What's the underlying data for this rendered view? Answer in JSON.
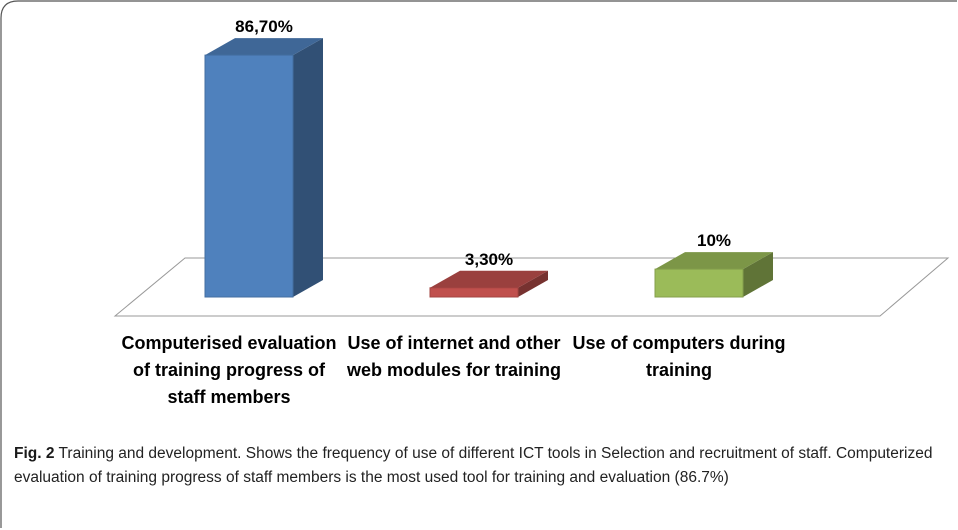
{
  "chart_data": {
    "type": "bar3d",
    "categories": [
      "Computerised evaluation of training progress of staff members",
      "Use of internet and other web modules for training",
      "Use of computers during training"
    ],
    "values": [
      86.7,
      3.3,
      10
    ],
    "value_labels": [
      "86,70%",
      "3,30%",
      "10%"
    ],
    "colors": [
      "#4f81bd",
      "#c0504d",
      "#9bbb59"
    ]
  },
  "caption": {
    "label": "Fig. 2",
    "text": "Training and development. Shows the frequency of use of different ICT tools in Selection and recruitment of staff. Computerized evaluation of training progress of staff members is the most used tool for training and evaluation (86.7%)"
  }
}
